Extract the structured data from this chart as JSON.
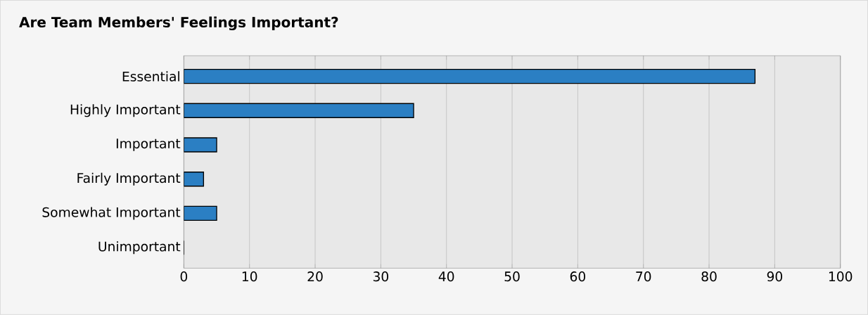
{
  "chart_data": {
    "type": "bar",
    "orientation": "horizontal",
    "title": "Are Team Members' Feelings Important?",
    "categories": [
      "Essential",
      "Highly Important",
      "Important",
      "Fairly Important",
      "Somewhat Important",
      "Unimportant"
    ],
    "values": [
      87,
      35,
      5,
      3,
      5,
      0
    ],
    "color": "#2b7fc3",
    "xlim": [
      0,
      100
    ],
    "xticks": [
      0,
      10,
      20,
      30,
      40,
      50,
      60,
      70,
      80,
      90,
      100
    ],
    "grid": "x"
  }
}
